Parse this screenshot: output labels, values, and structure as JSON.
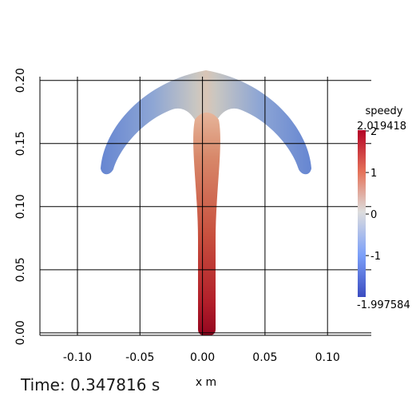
{
  "axes": {
    "x_title": "x m",
    "x_ticks": [
      "-0.10",
      "-0.05",
      "0.00",
      "0.05",
      "0.10"
    ],
    "x_tick_values": [
      -0.1,
      -0.05,
      0.0,
      0.05,
      0.1
    ],
    "y_ticks": [
      "0.00",
      "0.05",
      "0.10",
      "0.15",
      "0.20"
    ],
    "y_tick_values": [
      0.0,
      0.05,
      0.1,
      0.15,
      0.2
    ],
    "xlim": [
      -0.13,
      0.135
    ],
    "ylim": [
      -0.002,
      0.203
    ],
    "grid": true
  },
  "colorbar": {
    "title": "speedy",
    "max_label": "2.019418",
    "min_label": "-1.997584",
    "range": [
      -1.997584,
      2.019418
    ],
    "ticks": [
      "2",
      "1",
      "0",
      "-1"
    ],
    "tick_values": [
      2,
      1,
      0,
      -1
    ],
    "colors": {
      "high": "#b40426",
      "mid": "#dddddd",
      "low": "#3b4cc0"
    }
  },
  "time": {
    "prefix": "Time: ",
    "value": "0.347816",
    "unit": " s"
  }
}
